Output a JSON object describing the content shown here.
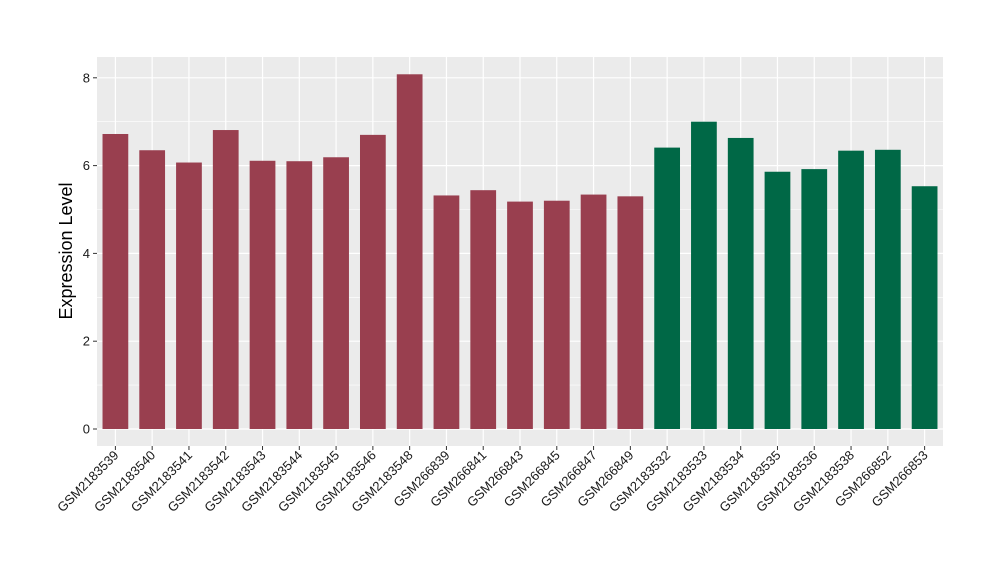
{
  "chart_data": {
    "type": "bar",
    "title": "",
    "xlabel": "",
    "ylabel": "Expression Level",
    "ylim": [
      0,
      8.4
    ],
    "yticks": [
      0,
      2,
      4,
      6,
      8
    ],
    "grid": true,
    "legend": "none",
    "colors": {
      "group_a": "#993F4F",
      "group_b": "#006846",
      "panel_bg": "#EBEBEB",
      "grid": "#FFFFFF"
    },
    "categories": [
      "GSM2183539",
      "GSM2183540",
      "GSM2183541",
      "GSM2183542",
      "GSM2183543",
      "GSM2183544",
      "GSM2183545",
      "GSM2183546",
      "GSM2183548",
      "GSM266839",
      "GSM266841",
      "GSM266843",
      "GSM266845",
      "GSM266847",
      "GSM266849",
      "GSM2183532",
      "GSM2183533",
      "GSM2183534",
      "GSM2183535",
      "GSM2183536",
      "GSM2183538",
      "GSM266852",
      "GSM266853"
    ],
    "values": [
      6.72,
      6.35,
      6.07,
      6.81,
      6.11,
      6.1,
      6.19,
      6.7,
      8.08,
      5.32,
      5.44,
      5.18,
      5.2,
      5.34,
      5.3,
      6.41,
      7.0,
      6.63,
      5.86,
      5.92,
      6.34,
      6.36,
      5.53
    ],
    "groups": [
      "a",
      "a",
      "a",
      "a",
      "a",
      "a",
      "a",
      "a",
      "a",
      "a",
      "a",
      "a",
      "a",
      "a",
      "a",
      "b",
      "b",
      "b",
      "b",
      "b",
      "b",
      "b",
      "b"
    ]
  }
}
